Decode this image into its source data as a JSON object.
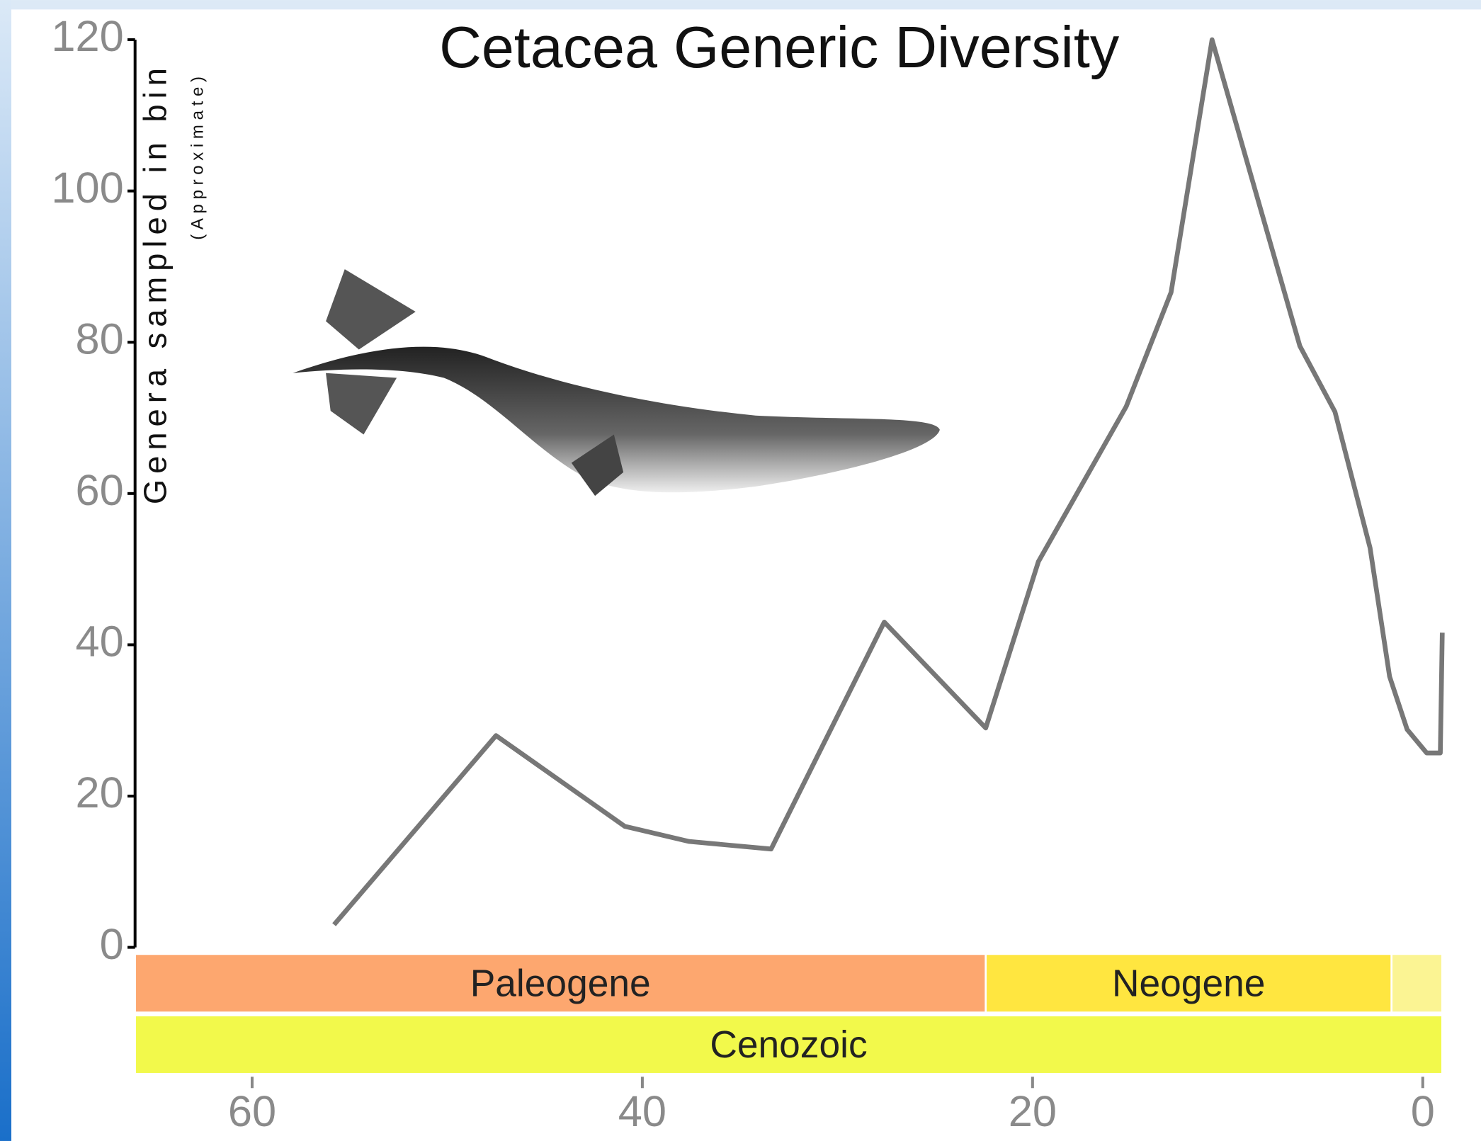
{
  "chart_data": {
    "type": "line",
    "title": "Cetacea Generic Diversity",
    "y_label": "Genera sampled in bin",
    "y_sublabel": "(Approximate)",
    "x": [
      55.8,
      47.5,
      40.9,
      37.6,
      33.4,
      27.6,
      22.4,
      19.7,
      15.2,
      12.9,
      10.8,
      6.3,
      4.5,
      2.7,
      1.7,
      0.8,
      -0.2,
      -0.9,
      -1.0
    ],
    "series": [
      {
        "color": "#777777",
        "values": [
          3,
          28,
          16,
          14,
          13,
          43,
          29,
          51,
          71.5,
          86.6,
          120,
          79.5,
          70.8,
          52.8,
          35.8,
          28.8,
          25.7,
          25.7,
          41.6
        ]
      }
    ],
    "xlim": [
      66,
      -1
    ],
    "xticks": [
      60,
      40,
      20,
      0
    ],
    "ylim": [
      0,
      120
    ],
    "yticks": [
      0,
      20,
      40,
      60,
      80,
      100,
      120
    ],
    "periods": [
      {
        "name": "Paleogene",
        "start": 66,
        "end": 22.4,
        "color": "#fda76f",
        "row": 0
      },
      {
        "name": "Neogene",
        "start": 22.4,
        "end": 1.6,
        "color": "#ffe640",
        "row": 0
      },
      {
        "name": null,
        "start": 1.6,
        "end": -1,
        "color": "#fbf493",
        "row": 0
      },
      {
        "name": "Cenozoic",
        "start": 66,
        "end": -1,
        "color": "#f2f94b",
        "row": 1
      }
    ]
  }
}
